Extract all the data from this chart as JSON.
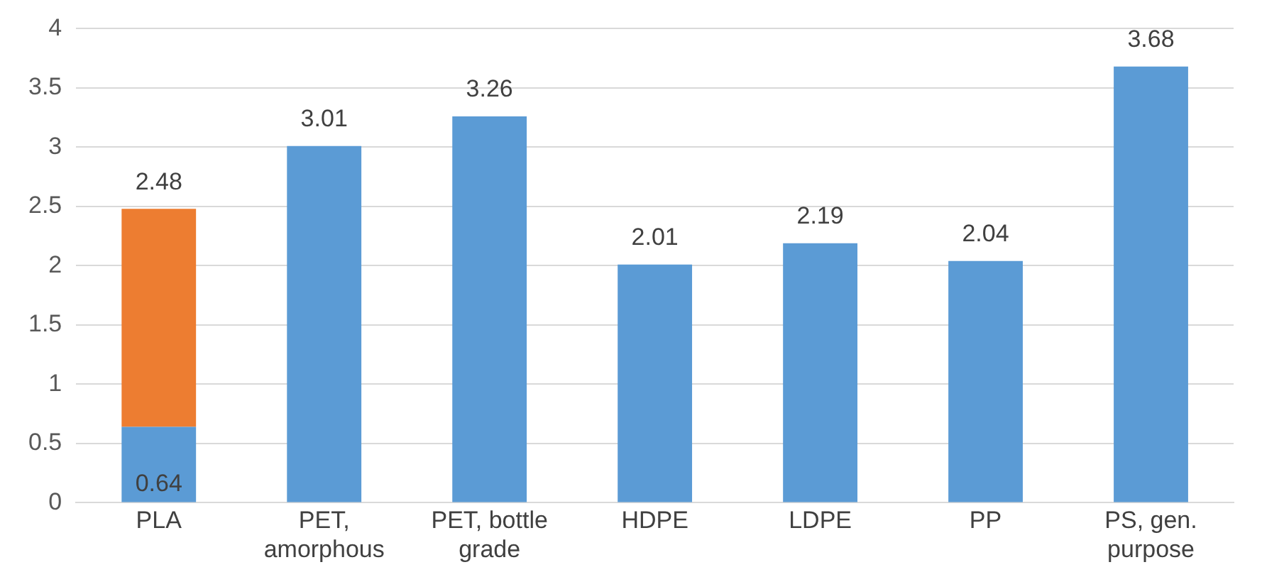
{
  "chart_data": {
    "type": "bar",
    "stacked": true,
    "categories": [
      "PLA",
      "PET, amorphous",
      "PET, bottle grade",
      "HDPE",
      "LDPE",
      "PP",
      "PS, gen. purpose"
    ],
    "series": [
      {
        "color": "#5b9bd5",
        "values": [
          0.64,
          3.01,
          3.26,
          2.01,
          2.19,
          2.04,
          3.68
        ],
        "value_labels": [
          "0.64",
          null,
          null,
          null,
          null,
          null,
          null
        ]
      },
      {
        "color": "#ed7d31",
        "values": [
          1.84,
          null,
          null,
          null,
          null,
          null,
          null
        ]
      }
    ],
    "totals": [
      "2.48",
      "3.01",
      "3.26",
      "2.01",
      "2.19",
      "2.04",
      "3.68"
    ],
    "ylim": [
      0,
      4
    ],
    "yticks": [
      0,
      0.5,
      1,
      1.5,
      2,
      2.5,
      3,
      3.5,
      4
    ],
    "grid": "y",
    "legend": false
  }
}
